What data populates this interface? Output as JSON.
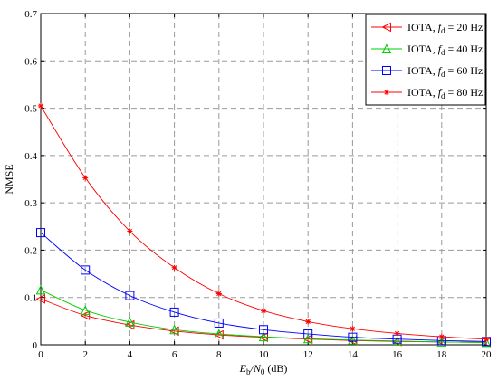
{
  "chart_data": {
    "type": "line",
    "xlabel": {
      "main": "E",
      "sub1": "b",
      "mid": "/N",
      "sub2": "0",
      "tail": " (dB)"
    },
    "ylabel": "NMSE",
    "xlim": [
      0,
      20
    ],
    "ylim": [
      0,
      0.7
    ],
    "xticks": [
      "0",
      "2",
      "4",
      "6",
      "8",
      "10",
      "12",
      "14",
      "16",
      "18",
      "20"
    ],
    "yticks": [
      "0",
      "0.1",
      "0.2",
      "0.3",
      "0.4",
      "0.5",
      "0.6",
      "0.7"
    ],
    "grid": true,
    "legend_position": "top-right",
    "x": [
      0,
      2,
      4,
      6,
      8,
      10,
      12,
      14,
      16,
      18,
      20
    ],
    "series": [
      {
        "name": "IOTA, f_d = 20 Hz",
        "legend": {
          "prefix": "IOTA, ",
          "var": "f",
          "sub": "d",
          "suffix": " = 20 Hz"
        },
        "color": "#ff0000",
        "marker": "triangle-left",
        "values": [
          0.097,
          0.062,
          0.042,
          0.029,
          0.021,
          0.016,
          0.012,
          0.009,
          0.007,
          0.006,
          0.005
        ]
      },
      {
        "name": "IOTA, f_d = 40 Hz",
        "legend": {
          "prefix": "IOTA, ",
          "var": "f",
          "sub": "d",
          "suffix": " = 40 Hz"
        },
        "color": "#00cc00",
        "marker": "triangle-up",
        "values": [
          0.116,
          0.073,
          0.048,
          0.032,
          0.023,
          0.017,
          0.013,
          0.01,
          0.008,
          0.006,
          0.005
        ]
      },
      {
        "name": "IOTA, f_d = 60 Hz",
        "legend": {
          "prefix": "IOTA, ",
          "var": "f",
          "sub": "d",
          "suffix": " = 60 Hz"
        },
        "color": "#0000ff",
        "marker": "square",
        "values": [
          0.237,
          0.158,
          0.104,
          0.069,
          0.046,
          0.032,
          0.023,
          0.016,
          0.012,
          0.009,
          0.007
        ]
      },
      {
        "name": "IOTA, f_d = 80 Hz",
        "legend": {
          "prefix": "IOTA, ",
          "var": "f",
          "sub": "d",
          "suffix": " = 80 Hz"
        },
        "color": "#ff0000",
        "marker": "star",
        "values": [
          0.505,
          0.353,
          0.24,
          0.163,
          0.108,
          0.072,
          0.049,
          0.034,
          0.024,
          0.017,
          0.012
        ]
      }
    ]
  }
}
